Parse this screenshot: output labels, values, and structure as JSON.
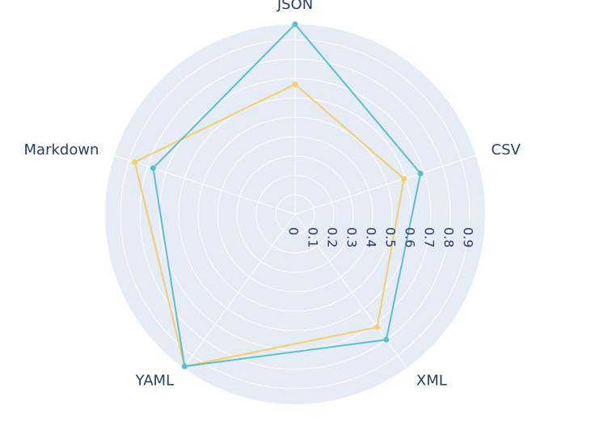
{
  "chart_data": {
    "type": "radar",
    "categories": [
      "JSON",
      "CSV",
      "XML",
      "YAML",
      "Markdown"
    ],
    "radial_ticks": [
      "0",
      "0.1",
      "0.2",
      "0.3",
      "0.4",
      "0.5",
      "0.6",
      "0.7",
      "0.8",
      "0.9"
    ],
    "rlim": [
      0,
      0.98
    ],
    "series": [
      {
        "values": [
          0.98,
          0.68,
          0.8,
          0.97,
          0.77
        ],
        "color": "#5bc0c8"
      },
      {
        "values": [
          0.67,
          0.59,
          0.72,
          0.97,
          0.87
        ],
        "color": "#f7cd6a"
      }
    ],
    "grid": true,
    "background": "#e5ecf6",
    "grid_color": "#ffffff"
  }
}
